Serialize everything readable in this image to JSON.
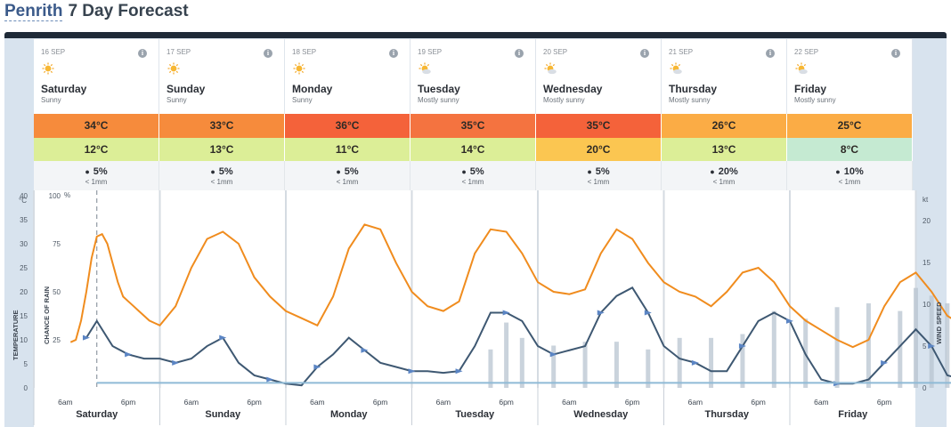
{
  "header": {
    "location": "Penrith",
    "title": "7 Day Forecast"
  },
  "days": [
    {
      "date": "16 SEP",
      "name": "Saturday",
      "condition": "Sunny",
      "max": "34°C",
      "min": "12°C",
      "rain_chance": "5%",
      "rain_amount": "< 1mm",
      "max_color": "#f68b3c",
      "min_color": "#dcee97",
      "icon": "sun-icon"
    },
    {
      "date": "17 SEP",
      "name": "Sunday",
      "condition": "Sunny",
      "max": "33°C",
      "min": "13°C",
      "rain_chance": "5%",
      "rain_amount": "< 1mm",
      "max_color": "#f68b3c",
      "min_color": "#dcee97",
      "icon": "sun-icon"
    },
    {
      "date": "18 SEP",
      "name": "Monday",
      "condition": "Sunny",
      "max": "36°C",
      "min": "11°C",
      "rain_chance": "5%",
      "rain_amount": "< 1mm",
      "max_color": "#f4623a",
      "min_color": "#dcee97",
      "icon": "sun-icon"
    },
    {
      "date": "19 SEP",
      "name": "Tuesday",
      "condition": "Mostly sunny",
      "max": "35°C",
      "min": "14°C",
      "rain_chance": "5%",
      "rain_amount": "< 1mm",
      "max_color": "#f47340",
      "min_color": "#dcee97",
      "icon": "mostly-sunny-icon"
    },
    {
      "date": "20 SEP",
      "name": "Wednesday",
      "condition": "Mostly sunny",
      "max": "35°C",
      "min": "20°C",
      "rain_chance": "5%",
      "rain_amount": "< 1mm",
      "max_color": "#f4623a",
      "min_color": "#fbc651",
      "icon": "mostly-sunny-icon"
    },
    {
      "date": "21 SEP",
      "name": "Thursday",
      "condition": "Mostly sunny",
      "max": "26°C",
      "min": "13°C",
      "rain_chance": "20%",
      "rain_amount": "< 1mm",
      "max_color": "#fbac45",
      "min_color": "#dcee97",
      "icon": "mostly-sunny-icon"
    },
    {
      "date": "22 SEP",
      "name": "Friday",
      "condition": "Mostly sunny",
      "max": "25°C",
      "min": "8°C",
      "rain_chance": "10%",
      "rain_amount": "< 1mm",
      "max_color": "#fbac45",
      "min_color": "#c5ead2",
      "icon": "mostly-sunny-icon"
    }
  ],
  "chart_data": {
    "type": "line",
    "title": "",
    "ylabel_left": "TEMPERATURE",
    "ylabel_left_unit": "°C",
    "ylabel_rain": "CHANCE OF RAIN",
    "ylabel_rain_unit": "%",
    "ylabel_right": "WIND SPEED",
    "ylabel_right_unit": "kt",
    "temp_ticks": [
      0,
      5,
      10,
      15,
      20,
      25,
      30,
      35,
      40
    ],
    "rain_ticks": [
      25,
      50,
      75,
      100
    ],
    "wind_ticks": [
      0,
      5,
      10,
      15,
      20
    ],
    "x_tick_labels": [
      "6am",
      "6pm"
    ],
    "day_labels": [
      "Saturday",
      "Sunday",
      "Monday",
      "Tuesday",
      "Wednesday",
      "Thursday",
      "Friday"
    ],
    "ylim_temp": [
      0,
      40
    ],
    "ylim_wind": [
      0,
      23
    ],
    "series": [
      {
        "name": "Temperature",
        "color": "#f08c1e",
        "points": [
          [
            7,
            9.5
          ],
          [
            8,
            10
          ],
          [
            9,
            14
          ],
          [
            10,
            20
          ],
          [
            11,
            27
          ],
          [
            12,
            31.5
          ],
          [
            13,
            32
          ],
          [
            14,
            30
          ],
          [
            15,
            26
          ],
          [
            16,
            22
          ],
          [
            17,
            19
          ],
          [
            18,
            18
          ],
          [
            19,
            17
          ],
          [
            20,
            16
          ],
          [
            21,
            15
          ],
          [
            22,
            14
          ],
          [
            23,
            13.5
          ],
          [
            24,
            13
          ],
          [
            27,
            17
          ],
          [
            30,
            25
          ],
          [
            33,
            31
          ],
          [
            36,
            32.5
          ],
          [
            39,
            30
          ],
          [
            42,
            23
          ],
          [
            45,
            19
          ],
          [
            48,
            16
          ],
          [
            51,
            14.5
          ],
          [
            54,
            13
          ],
          [
            57,
            19
          ],
          [
            60,
            29
          ],
          [
            63,
            34
          ],
          [
            66,
            33
          ],
          [
            69,
            26
          ],
          [
            72,
            20
          ],
          [
            75,
            17
          ],
          [
            78,
            16
          ],
          [
            81,
            18
          ],
          [
            84,
            28
          ],
          [
            87,
            33
          ],
          [
            90,
            32.5
          ],
          [
            93,
            28
          ],
          [
            96,
            22
          ],
          [
            99,
            20
          ],
          [
            102,
            19.5
          ],
          [
            105,
            20.5
          ],
          [
            108,
            28
          ],
          [
            111,
            33
          ],
          [
            114,
            31
          ],
          [
            117,
            26
          ],
          [
            120,
            22
          ],
          [
            123,
            20
          ],
          [
            126,
            19
          ],
          [
            129,
            17
          ],
          [
            132,
            20
          ],
          [
            135,
            24
          ],
          [
            138,
            25
          ],
          [
            141,
            22
          ],
          [
            144,
            17
          ],
          [
            147,
            14
          ],
          [
            150,
            12
          ],
          [
            153,
            10
          ],
          [
            156,
            8.5
          ],
          [
            159,
            10
          ],
          [
            162,
            17
          ],
          [
            165,
            22
          ],
          [
            168,
            24
          ],
          [
            171,
            20
          ],
          [
            174,
            15
          ],
          [
            177,
            13
          ]
        ]
      },
      {
        "name": "Rain chance",
        "color": "#b8c4d0",
        "bars": [
          [
            87,
            20
          ],
          [
            90,
            34
          ],
          [
            93,
            26
          ],
          [
            99,
            22
          ],
          [
            105,
            24
          ],
          [
            111,
            24
          ],
          [
            117,
            20
          ],
          [
            123,
            26
          ],
          [
            129,
            26
          ],
          [
            135,
            28
          ],
          [
            141,
            40
          ],
          [
            147,
            36
          ],
          [
            153,
            42
          ],
          [
            159,
            44
          ],
          [
            165,
            40
          ],
          [
            168,
            52
          ],
          [
            171,
            48
          ],
          [
            174,
            44
          ],
          [
            177,
            40
          ]
        ]
      },
      {
        "name": "Wind speed",
        "color": "#3e5872",
        "points": [
          [
            10,
            6
          ],
          [
            12,
            8
          ],
          [
            15,
            5
          ],
          [
            18,
            4
          ],
          [
            21,
            3.5
          ],
          [
            24,
            3.5
          ],
          [
            27,
            3
          ],
          [
            30,
            3.5
          ],
          [
            33,
            5
          ],
          [
            36,
            6
          ],
          [
            39,
            3
          ],
          [
            42,
            1.5
          ],
          [
            45,
            1
          ],
          [
            48,
            0.5
          ],
          [
            51,
            0.3
          ],
          [
            54,
            2.5
          ],
          [
            57,
            4
          ],
          [
            60,
            6
          ],
          [
            63,
            4.5
          ],
          [
            66,
            3
          ],
          [
            69,
            2.5
          ],
          [
            72,
            2
          ],
          [
            75,
            2
          ],
          [
            78,
            1.8
          ],
          [
            81,
            2
          ],
          [
            84,
            5
          ],
          [
            87,
            9
          ],
          [
            90,
            9
          ],
          [
            93,
            8
          ],
          [
            96,
            5
          ],
          [
            99,
            4
          ],
          [
            102,
            4.5
          ],
          [
            105,
            5
          ],
          [
            108,
            9
          ],
          [
            111,
            11
          ],
          [
            114,
            12
          ],
          [
            117,
            9
          ],
          [
            120,
            5
          ],
          [
            123,
            3.5
          ],
          [
            126,
            3
          ],
          [
            129,
            2
          ],
          [
            132,
            2
          ],
          [
            135,
            5
          ],
          [
            138,
            8
          ],
          [
            141,
            9
          ],
          [
            144,
            8
          ],
          [
            147,
            4
          ],
          [
            150,
            1
          ],
          [
            153,
            0.5
          ],
          [
            156,
            0.5
          ],
          [
            159,
            1
          ],
          [
            162,
            3
          ],
          [
            165,
            5
          ],
          [
            168,
            7
          ],
          [
            171,
            5
          ],
          [
            174,
            1.5
          ],
          [
            177,
            1
          ]
        ]
      }
    ]
  }
}
